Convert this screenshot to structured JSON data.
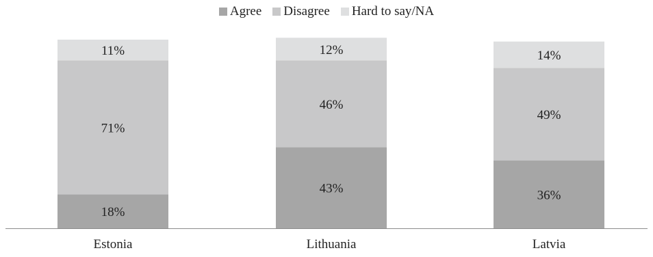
{
  "chart_data": {
    "type": "bar",
    "stacked": true,
    "categories": [
      "Estonia",
      "Lithuania",
      "Latvia"
    ],
    "series": [
      {
        "name": "Agree",
        "values": [
          18,
          43,
          36
        ],
        "labels": [
          "18%",
          "43%",
          "36%"
        ],
        "color": "#a6a6a6"
      },
      {
        "name": "Disagree",
        "values": [
          71,
          46,
          49
        ],
        "labels": [
          "71%",
          "46%",
          "49%"
        ],
        "color": "#c8c8c9"
      },
      {
        "name": "Hard to say/NA",
        "values": [
          11,
          12,
          14
        ],
        "labels": [
          "11%",
          "12%",
          "14%"
        ],
        "color": "#dedfe0"
      }
    ],
    "ylim": [
      0,
      100
    ],
    "grid": false,
    "legend_position": "top-center"
  }
}
